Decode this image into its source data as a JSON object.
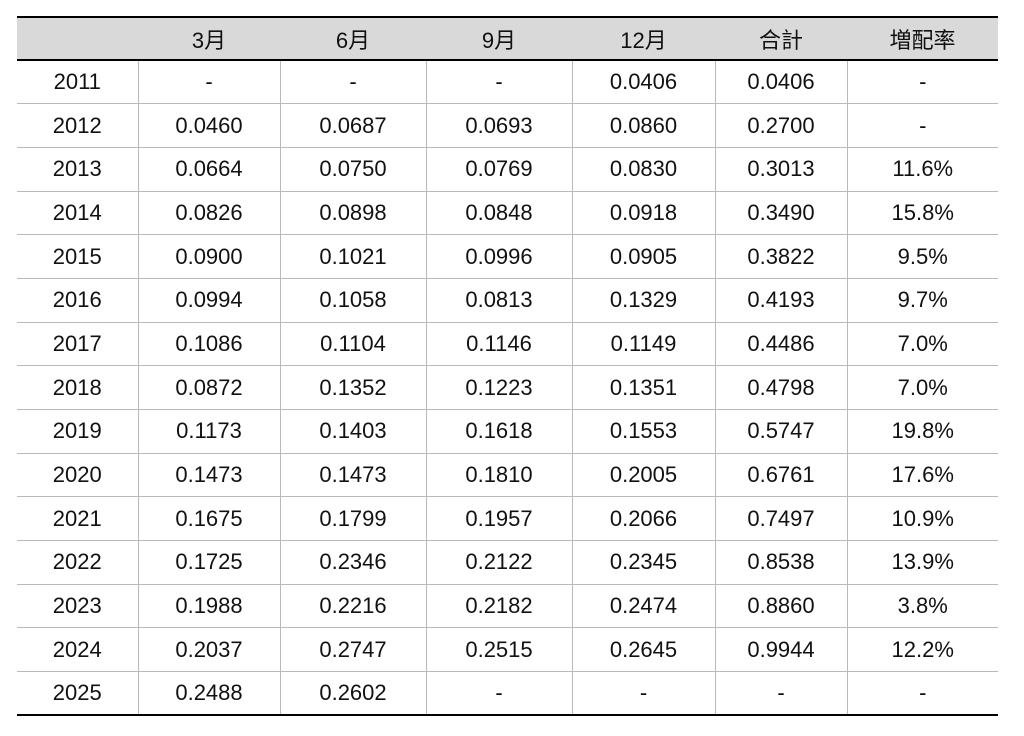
{
  "chart_data": {
    "type": "table",
    "columns": [
      "",
      "3月",
      "6月",
      "9月",
      "12月",
      "合計",
      "増配率"
    ],
    "rows": [
      [
        "2011",
        "-",
        "-",
        "-",
        "0.0406",
        "0.0406",
        "-"
      ],
      [
        "2012",
        "0.0460",
        "0.0687",
        "0.0693",
        "0.0860",
        "0.2700",
        "-"
      ],
      [
        "2013",
        "0.0664",
        "0.0750",
        "0.0769",
        "0.0830",
        "0.3013",
        "11.6%"
      ],
      [
        "2014",
        "0.0826",
        "0.0898",
        "0.0848",
        "0.0918",
        "0.3490",
        "15.8%"
      ],
      [
        "2015",
        "0.0900",
        "0.1021",
        "0.0996",
        "0.0905",
        "0.3822",
        "9.5%"
      ],
      [
        "2016",
        "0.0994",
        "0.1058",
        "0.0813",
        "0.1329",
        "0.4193",
        "9.7%"
      ],
      [
        "2017",
        "0.1086",
        "0.1104",
        "0.1146",
        "0.1149",
        "0.4486",
        "7.0%"
      ],
      [
        "2018",
        "0.0872",
        "0.1352",
        "0.1223",
        "0.1351",
        "0.4798",
        "7.0%"
      ],
      [
        "2019",
        "0.1173",
        "0.1403",
        "0.1618",
        "0.1553",
        "0.5747",
        "19.8%"
      ],
      [
        "2020",
        "0.1473",
        "0.1473",
        "0.1810",
        "0.2005",
        "0.6761",
        "17.6%"
      ],
      [
        "2021",
        "0.1675",
        "0.1799",
        "0.1957",
        "0.2066",
        "0.7497",
        "10.9%"
      ],
      [
        "2022",
        "0.1725",
        "0.2346",
        "0.2122",
        "0.2345",
        "0.8538",
        "13.9%"
      ],
      [
        "2023",
        "0.1988",
        "0.2216",
        "0.2182",
        "0.2474",
        "0.8860",
        "3.8%"
      ],
      [
        "2024",
        "0.2037",
        "0.2747",
        "0.2515",
        "0.2645",
        "0.9944",
        "12.2%"
      ],
      [
        "2025",
        "0.2488",
        "0.2602",
        "-",
        "-",
        "-",
        "-"
      ]
    ],
    "header_background": "#d9d9d9",
    "border_color": "#b9b9b9",
    "rule_color": "#000000"
  }
}
